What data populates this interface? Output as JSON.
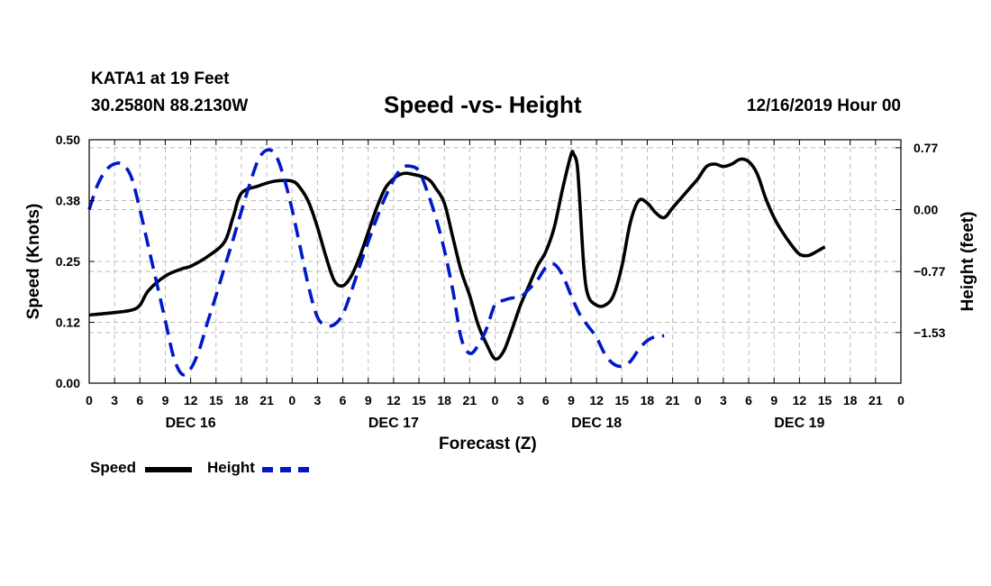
{
  "header": {
    "station": "KATA1 at 19 Feet",
    "coords": "30.2580N 88.2130W",
    "title": "Speed -vs- Height",
    "datetime": "12/16/2019 Hour 00"
  },
  "legend": {
    "speed_label": "Speed",
    "height_label": "Height"
  },
  "colors": {
    "speed": "#000000",
    "height": "#0018c8",
    "grid": "#bbbbbb"
  },
  "chart_data": {
    "type": "line",
    "title": "Speed -vs- Height",
    "xlabel": "Forecast (Z)",
    "ylabel": "Speed (Knots)",
    "y2label": "Height (feet)",
    "x_range_hours": [
      0,
      96
    ],
    "xtick_hours": [
      0,
      3,
      6,
      9,
      12,
      15,
      18,
      21,
      24,
      27,
      30,
      33,
      36,
      39,
      42,
      45,
      48,
      51,
      54,
      57,
      60,
      63,
      66,
      69,
      72,
      75,
      78,
      81,
      84,
      87,
      90,
      93,
      96
    ],
    "xtick_labels": [
      "0",
      "3",
      "6",
      "9",
      "12",
      "15",
      "18",
      "21",
      "0",
      "3",
      "6",
      "9",
      "12",
      "15",
      "18",
      "21",
      "0",
      "3",
      "6",
      "9",
      "12",
      "15",
      "18",
      "21",
      "0",
      "3",
      "6",
      "9",
      "12",
      "15",
      "18",
      "21",
      "0"
    ],
    "day_labels": [
      {
        "hour": 12,
        "label": "DEC 16"
      },
      {
        "hour": 36,
        "label": "DEC 17"
      },
      {
        "hour": 60,
        "label": "DEC 18"
      },
      {
        "hour": 84,
        "label": "DEC 19"
      }
    ],
    "ylim": [
      0,
      0.5
    ],
    "yticks": [
      0.0,
      0.125,
      0.25,
      0.375,
      0.5
    ],
    "ytick_labels": [
      "0.00",
      "0.12",
      "0.25",
      "0.38",
      "0.50"
    ],
    "y2lim": [
      -2.16,
      0.87
    ],
    "y2ticks": [
      0.77,
      0.0,
      -0.77,
      -1.53
    ],
    "y2tick_labels": [
      "0.77",
      "0.00",
      "−0.77",
      "−1.53"
    ],
    "series": [
      {
        "name": "Speed",
        "axis": "left",
        "style": "solid",
        "points": [
          [
            0,
            0.14
          ],
          [
            3,
            0.145
          ],
          [
            5,
            0.15
          ],
          [
            6,
            0.16
          ],
          [
            7,
            0.19
          ],
          [
            9,
            0.22
          ],
          [
            11,
            0.235
          ],
          [
            12,
            0.24
          ],
          [
            14,
            0.26
          ],
          [
            16,
            0.29
          ],
          [
            17,
            0.34
          ],
          [
            18,
            0.39
          ],
          [
            20,
            0.405
          ],
          [
            22,
            0.415
          ],
          [
            24,
            0.415
          ],
          [
            25,
            0.4
          ],
          [
            26,
            0.37
          ],
          [
            27,
            0.32
          ],
          [
            28,
            0.26
          ],
          [
            29,
            0.21
          ],
          [
            30,
            0.2
          ],
          [
            31,
            0.22
          ],
          [
            32,
            0.26
          ],
          [
            33,
            0.31
          ],
          [
            34,
            0.36
          ],
          [
            35,
            0.4
          ],
          [
            36,
            0.42
          ],
          [
            37,
            0.43
          ],
          [
            38,
            0.43
          ],
          [
            40,
            0.42
          ],
          [
            41,
            0.4
          ],
          [
            42,
            0.37
          ],
          [
            43,
            0.3
          ],
          [
            44,
            0.23
          ],
          [
            45,
            0.18
          ],
          [
            46,
            0.12
          ],
          [
            47,
            0.08
          ],
          [
            48,
            0.05
          ],
          [
            49,
            0.065
          ],
          [
            50,
            0.11
          ],
          [
            51,
            0.16
          ],
          [
            52,
            0.2
          ],
          [
            53,
            0.24
          ],
          [
            54,
            0.27
          ],
          [
            55,
            0.32
          ],
          [
            56,
            0.4
          ],
          [
            57,
            0.47
          ],
          [
            57.3,
            0.47
          ],
          [
            57.7,
            0.45
          ],
          [
            58,
            0.38
          ],
          [
            58.5,
            0.24
          ],
          [
            59,
            0.18
          ],
          [
            60,
            0.16
          ],
          [
            61,
            0.16
          ],
          [
            62,
            0.18
          ],
          [
            63,
            0.24
          ],
          [
            64,
            0.33
          ],
          [
            65,
            0.375
          ],
          [
            66,
            0.37
          ],
          [
            67,
            0.35
          ],
          [
            68,
            0.34
          ],
          [
            69,
            0.36
          ],
          [
            70,
            0.38
          ],
          [
            71,
            0.4
          ],
          [
            72,
            0.42
          ],
          [
            73,
            0.445
          ],
          [
            74,
            0.45
          ],
          [
            75,
            0.445
          ],
          [
            76,
            0.45
          ],
          [
            77,
            0.46
          ],
          [
            78,
            0.455
          ],
          [
            79,
            0.43
          ],
          [
            80,
            0.38
          ],
          [
            81,
            0.34
          ],
          [
            82,
            0.31
          ],
          [
            83,
            0.285
          ],
          [
            84,
            0.265
          ],
          [
            85,
            0.262
          ],
          [
            86,
            0.27
          ],
          [
            87,
            0.28
          ]
        ]
      },
      {
        "name": "Height",
        "axis": "right",
        "style": "dashed",
        "points": [
          [
            0,
            0.0
          ],
          [
            1,
            0.31
          ],
          [
            2,
            0.49
          ],
          [
            3,
            0.57
          ],
          [
            4,
            0.56
          ],
          [
            5,
            0.4
          ],
          [
            6,
            0.0
          ],
          [
            7,
            -0.46
          ],
          [
            8,
            -0.92
          ],
          [
            9,
            -1.38
          ],
          [
            10,
            -1.84
          ],
          [
            11,
            -2.05
          ],
          [
            12,
            -1.98
          ],
          [
            13,
            -1.75
          ],
          [
            14,
            -1.4
          ],
          [
            15,
            -1.07
          ],
          [
            16,
            -0.72
          ],
          [
            17,
            -0.38
          ],
          [
            18,
            -0.02
          ],
          [
            19,
            0.32
          ],
          [
            20,
            0.62
          ],
          [
            21,
            0.74
          ],
          [
            22,
            0.69
          ],
          [
            23,
            0.41
          ],
          [
            24,
            0.0
          ],
          [
            25,
            -0.49
          ],
          [
            26,
            -0.98
          ],
          [
            27,
            -1.34
          ],
          [
            28,
            -1.44
          ],
          [
            29,
            -1.43
          ],
          [
            30,
            -1.3
          ],
          [
            31,
            -1.02
          ],
          [
            32,
            -0.7
          ],
          [
            33,
            -0.4
          ],
          [
            34,
            -0.11
          ],
          [
            35,
            0.15
          ],
          [
            36,
            0.37
          ],
          [
            37,
            0.52
          ],
          [
            38,
            0.54
          ],
          [
            39,
            0.48
          ],
          [
            40,
            0.22
          ],
          [
            41,
            -0.1
          ],
          [
            42,
            -0.5
          ],
          [
            43,
            -1.0
          ],
          [
            44,
            -1.6
          ],
          [
            45,
            -1.79
          ],
          [
            46,
            -1.69
          ],
          [
            47,
            -1.48
          ],
          [
            48,
            -1.18
          ],
          [
            49,
            -1.13
          ],
          [
            50,
            -1.1
          ],
          [
            51,
            -1.09
          ],
          [
            52,
            -0.99
          ],
          [
            53,
            -0.88
          ],
          [
            54,
            -0.72
          ],
          [
            55,
            -0.68
          ],
          [
            56,
            -0.82
          ],
          [
            57,
            -1.07
          ],
          [
            58,
            -1.3
          ],
          [
            59,
            -1.45
          ],
          [
            60,
            -1.59
          ],
          [
            61,
            -1.8
          ],
          [
            62,
            -1.92
          ],
          [
            63,
            -1.95
          ],
          [
            64,
            -1.89
          ],
          [
            65,
            -1.74
          ],
          [
            66,
            -1.63
          ],
          [
            67,
            -1.58
          ],
          [
            68,
            -1.57
          ]
        ]
      }
    ]
  }
}
